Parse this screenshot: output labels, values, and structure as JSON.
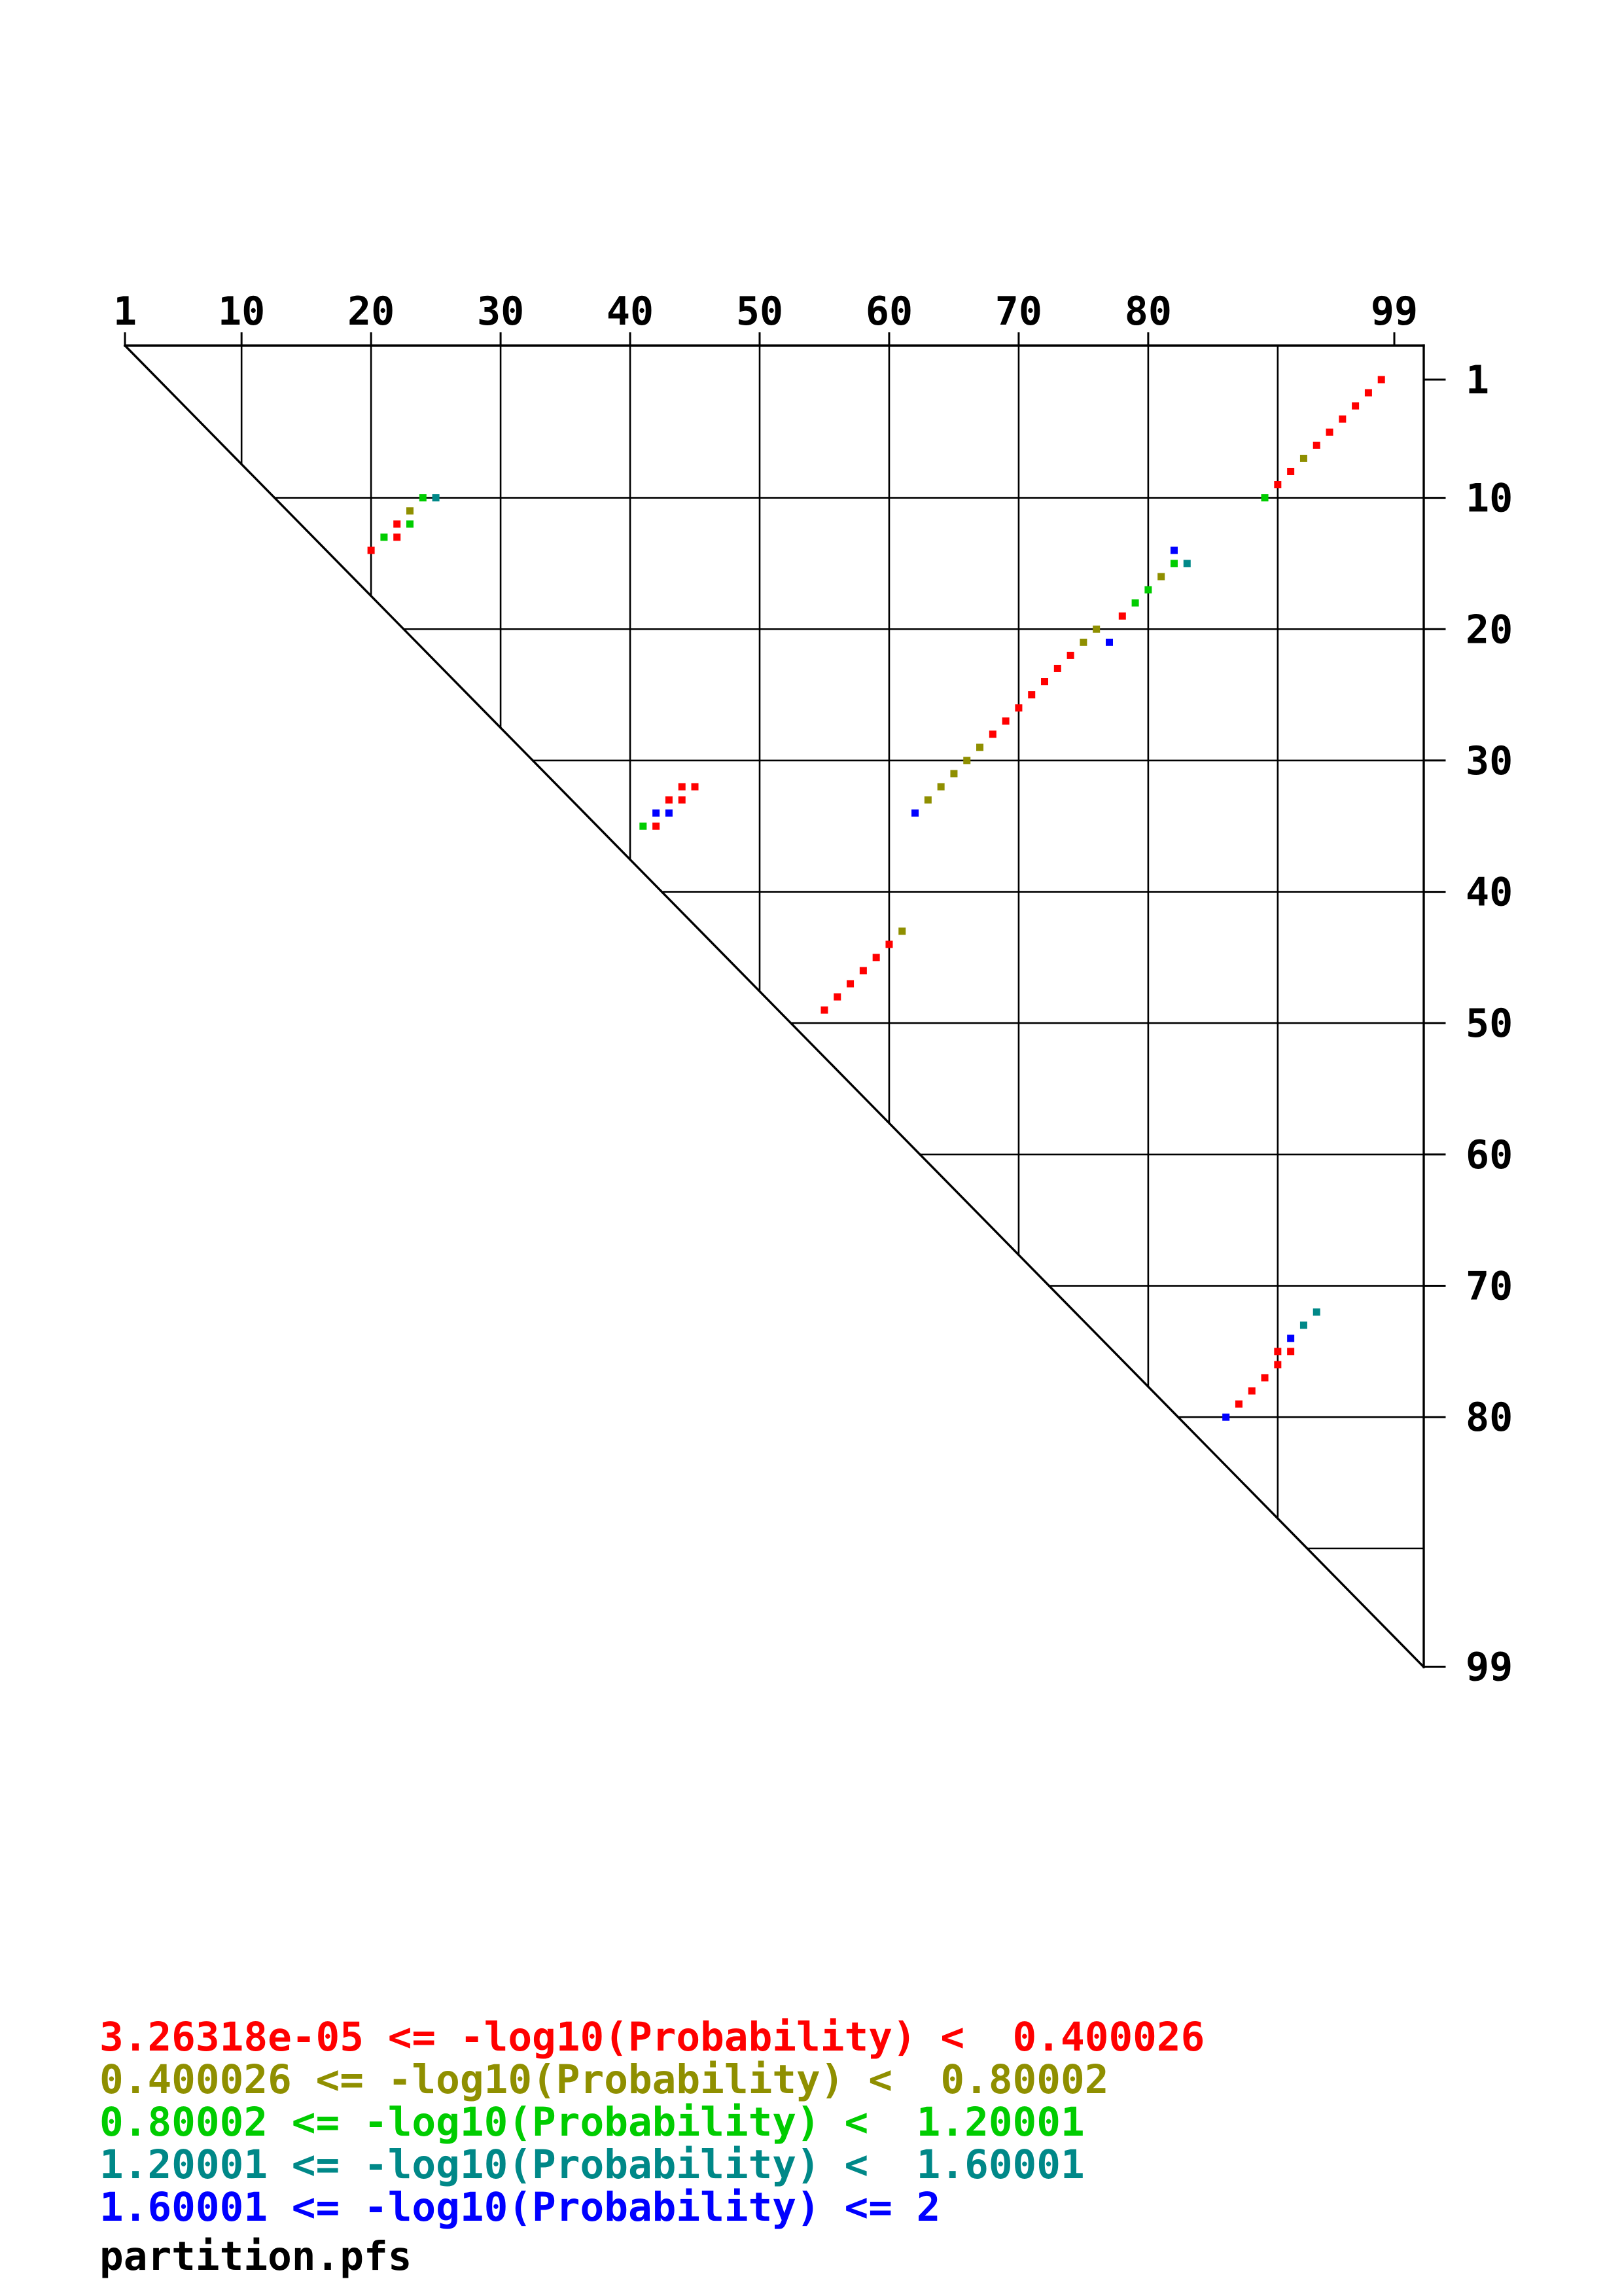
{
  "page": {
    "background": "#ffffff"
  },
  "legend": {
    "filename": "partition.pfs"
  },
  "chart_data": {
    "type": "scatter",
    "title": "",
    "xlabel": "",
    "ylabel": "",
    "description": "Upper-triangular RNA base-pair probability dot plot (partition function), positions 1-99 on both axes, diagonal boundary, grid every 10 nucleotides",
    "x_range": [
      1,
      99
    ],
    "y_range": [
      1,
      99
    ],
    "x_ticks": [
      1,
      10,
      20,
      30,
      40,
      50,
      60,
      70,
      80,
      99
    ],
    "y_ticks": [
      1,
      10,
      20,
      30,
      40,
      50,
      60,
      70,
      80,
      99
    ],
    "grid_positions": [
      10,
      20,
      30,
      40,
      50,
      60,
      70,
      80,
      90
    ],
    "grid": true,
    "legend_position": "bottom-left",
    "classes": [
      {
        "name": "prob-class-1",
        "color": "#ff0000",
        "label": "3.26318e-05 <= -log10(Probability) <  0.400026"
      },
      {
        "name": "prob-class-2",
        "color": "#8f8f00",
        "label": "0.400026 <= -log10(Probability) <  0.80002"
      },
      {
        "name": "prob-class-3",
        "color": "#00cc00",
        "label": "0.80002 <= -log10(Probability) <  1.20001"
      },
      {
        "name": "prob-class-4",
        "color": "#008888",
        "label": "1.20001 <= -log10(Probability) <  1.60001"
      },
      {
        "name": "prob-class-5",
        "color": "#0000ff",
        "label": "1.60001 <= -log10(Probability) <= 2"
      }
    ],
    "points": [
      [
        1,
        98,
        0
      ],
      [
        2,
        97,
        0
      ],
      [
        3,
        96,
        0
      ],
      [
        4,
        95,
        0
      ],
      [
        5,
        94,
        0
      ],
      [
        6,
        93,
        0
      ],
      [
        7,
        92,
        1
      ],
      [
        8,
        91,
        0
      ],
      [
        9,
        90,
        0
      ],
      [
        10,
        89,
        2
      ],
      [
        14,
        20,
        0
      ],
      [
        13,
        21,
        2
      ],
      [
        13,
        22,
        0
      ],
      [
        12,
        22,
        0
      ],
      [
        12,
        23,
        2
      ],
      [
        11,
        23,
        1
      ],
      [
        10,
        24,
        2
      ],
      [
        10,
        25,
        3
      ],
      [
        34,
        62,
        4
      ],
      [
        33,
        63,
        1
      ],
      [
        32,
        64,
        1
      ],
      [
        31,
        65,
        1
      ],
      [
        30,
        66,
        1
      ],
      [
        29,
        67,
        1
      ],
      [
        28,
        68,
        0
      ],
      [
        27,
        69,
        0
      ],
      [
        26,
        70,
        0
      ],
      [
        25,
        71,
        0
      ],
      [
        24,
        72,
        0
      ],
      [
        23,
        73,
        0
      ],
      [
        22,
        74,
        0
      ],
      [
        21,
        75,
        1
      ],
      [
        20,
        76,
        1
      ],
      [
        21,
        77,
        4
      ],
      [
        19,
        78,
        0
      ],
      [
        18,
        79,
        2
      ],
      [
        17,
        80,
        2
      ],
      [
        16,
        81,
        1
      ],
      [
        15,
        82,
        2
      ],
      [
        14,
        82,
        4
      ],
      [
        15,
        83,
        3
      ],
      [
        35,
        41,
        2
      ],
      [
        35,
        42,
        0
      ],
      [
        34,
        42,
        4
      ],
      [
        34,
        43,
        4
      ],
      [
        33,
        43,
        0
      ],
      [
        33,
        44,
        0
      ],
      [
        32,
        44,
        0
      ],
      [
        32,
        45,
        0
      ],
      [
        49,
        55,
        0
      ],
      [
        48,
        56,
        0
      ],
      [
        47,
        57,
        0
      ],
      [
        46,
        58,
        0
      ],
      [
        45,
        59,
        0
      ],
      [
        44,
        60,
        0
      ],
      [
        43,
        61,
        1
      ],
      [
        80,
        86,
        4
      ],
      [
        79,
        87,
        0
      ],
      [
        78,
        88,
        0
      ],
      [
        77,
        89,
        0
      ],
      [
        76,
        90,
        0
      ],
      [
        75,
        90,
        0
      ],
      [
        75,
        91,
        0
      ],
      [
        74,
        91,
        4
      ],
      [
        73,
        92,
        3
      ],
      [
        72,
        93,
        3
      ]
    ]
  }
}
